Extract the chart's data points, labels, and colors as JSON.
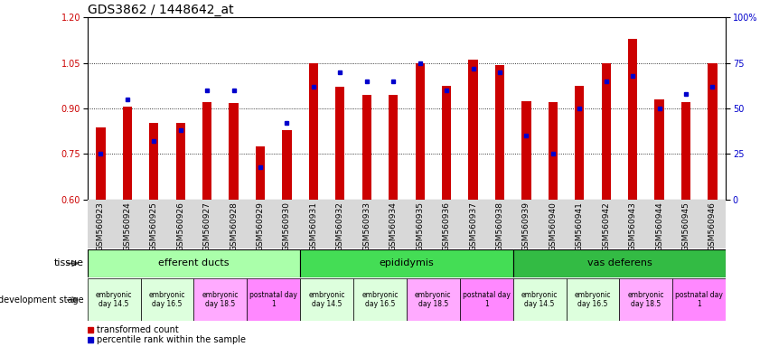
{
  "title": "GDS3862 / 1448642_at",
  "samples": [
    "GSM560923",
    "GSM560924",
    "GSM560925",
    "GSM560926",
    "GSM560927",
    "GSM560928",
    "GSM560929",
    "GSM560930",
    "GSM560931",
    "GSM560932",
    "GSM560933",
    "GSM560934",
    "GSM560935",
    "GSM560936",
    "GSM560937",
    "GSM560938",
    "GSM560939",
    "GSM560940",
    "GSM560941",
    "GSM560942",
    "GSM560943",
    "GSM560944",
    "GSM560945",
    "GSM560946"
  ],
  "transformed_count": [
    0.838,
    0.905,
    0.853,
    0.852,
    0.922,
    0.918,
    0.775,
    0.83,
    1.048,
    0.97,
    0.945,
    0.946,
    1.05,
    0.975,
    1.062,
    1.042,
    0.925,
    0.922,
    0.974,
    1.05,
    1.13,
    0.93,
    0.92,
    1.05
  ],
  "percentile_rank": [
    25,
    55,
    32,
    38,
    60,
    60,
    18,
    42,
    62,
    70,
    65,
    65,
    75,
    60,
    72,
    70,
    35,
    25,
    50,
    65,
    68,
    50,
    58,
    62
  ],
  "ylim_left": [
    0.6,
    1.2
  ],
  "ylim_right": [
    0,
    100
  ],
  "yticks_left": [
    0.6,
    0.75,
    0.9,
    1.05,
    1.2
  ],
  "yticks_right": [
    0,
    25,
    50,
    75,
    100
  ],
  "bar_color": "#cc0000",
  "marker_color": "#0000cc",
  "bar_width": 0.35,
  "tissue_groups": [
    {
      "label": "efferent ducts",
      "start": 0,
      "end": 8,
      "color": "#aaffaa"
    },
    {
      "label": "epididymis",
      "start": 8,
      "end": 16,
      "color": "#44dd55"
    },
    {
      "label": "vas deferens",
      "start": 16,
      "end": 24,
      "color": "#33bb44"
    }
  ],
  "dev_stage_configs": [
    {
      "label": "embryonic\nday 14.5",
      "start": 0,
      "end": 2,
      "color": "#ddffdd"
    },
    {
      "label": "embryonic\nday 16.5",
      "start": 2,
      "end": 4,
      "color": "#ddffdd"
    },
    {
      "label": "embryonic\nday 18.5",
      "start": 4,
      "end": 6,
      "color": "#ffaaff"
    },
    {
      "label": "postnatal day\n1",
      "start": 6,
      "end": 8,
      "color": "#ff88ff"
    },
    {
      "label": "embryonic\nday 14.5",
      "start": 8,
      "end": 10,
      "color": "#ddffdd"
    },
    {
      "label": "embryonic\nday 16.5",
      "start": 10,
      "end": 12,
      "color": "#ddffdd"
    },
    {
      "label": "embryonic\nday 18.5",
      "start": 12,
      "end": 14,
      "color": "#ffaaff"
    },
    {
      "label": "postnatal day\n1",
      "start": 14,
      "end": 16,
      "color": "#ff88ff"
    },
    {
      "label": "embryonic\nday 14.5",
      "start": 16,
      "end": 18,
      "color": "#ddffdd"
    },
    {
      "label": "embryonic\nday 16.5",
      "start": 18,
      "end": 20,
      "color": "#ddffdd"
    },
    {
      "label": "embryonic\nday 18.5",
      "start": 20,
      "end": 22,
      "color": "#ffaaff"
    },
    {
      "label": "postnatal day\n1",
      "start": 22,
      "end": 24,
      "color": "#ff88ff"
    }
  ],
  "legend_items": [
    {
      "label": "transformed count",
      "color": "#cc0000"
    },
    {
      "label": "percentile rank within the sample",
      "color": "#0000cc"
    }
  ],
  "bg_color": "#ffffff",
  "title_fontsize": 10,
  "tick_fontsize": 6.5,
  "label_fontsize": 8
}
